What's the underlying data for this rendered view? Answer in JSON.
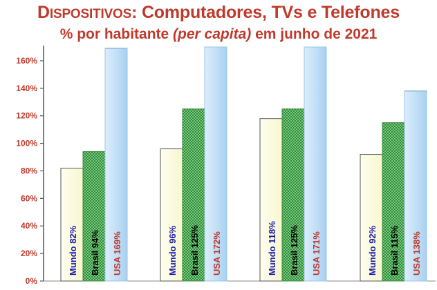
{
  "title": {
    "big_initial": "D",
    "small_rest": "ISPOSITIVOS",
    "rest": ": Computadores, TVs e Telefones"
  },
  "subtitle": {
    "before": "% por habitante ",
    "italic": "(per capita)",
    "after": " em junho de 2021"
  },
  "colors": {
    "title": "#c0392b",
    "axis_labels": "#c0392b",
    "mundo_fill": "#fdfde0",
    "brasil_fill": "#4caf50",
    "usa_fill": "#bcdcf5",
    "mundo_text": "#1a1aa8",
    "brasil_text": "#000000",
    "usa_text": "#c0392b"
  },
  "chart_data": {
    "type": "bar",
    "title": "DISPOSITIVOS: Computadores, TVs e Telefones",
    "subtitle": "% por habitante (per capita) em junho de 2021",
    "ylim": [
      0,
      170
    ],
    "yticks": [
      "0%",
      "20%",
      "40%",
      "60%",
      "80%",
      "100%",
      "120%",
      "140%",
      "160%"
    ],
    "ytick_values": [
      0,
      20,
      40,
      60,
      80,
      100,
      120,
      140,
      160
    ],
    "groups": [
      {
        "values": [
          82,
          94,
          169
        ],
        "labels": [
          "Mundo 82%",
          "Brasil 94%",
          "USA 169%"
        ]
      },
      {
        "values": [
          96,
          125,
          172
        ],
        "labels": [
          "Mundo 96%",
          "Brasil 125%",
          "USA 172%"
        ]
      },
      {
        "values": [
          118,
          125,
          171
        ],
        "labels": [
          "Mundo 118%",
          "Brasil 125%",
          "USA 171%"
        ]
      },
      {
        "values": [
          92,
          115,
          138
        ],
        "labels": [
          "Mundo 92%",
          "Brasil 115%",
          "USA 138%"
        ]
      }
    ],
    "series": [
      {
        "values": [
          82,
          96,
          118,
          92
        ]
      },
      {
        "values": [
          94,
          125,
          125,
          115
        ]
      },
      {
        "values": [
          169,
          172,
          171,
          138
        ]
      }
    ],
    "grid": false,
    "legend": "none"
  }
}
